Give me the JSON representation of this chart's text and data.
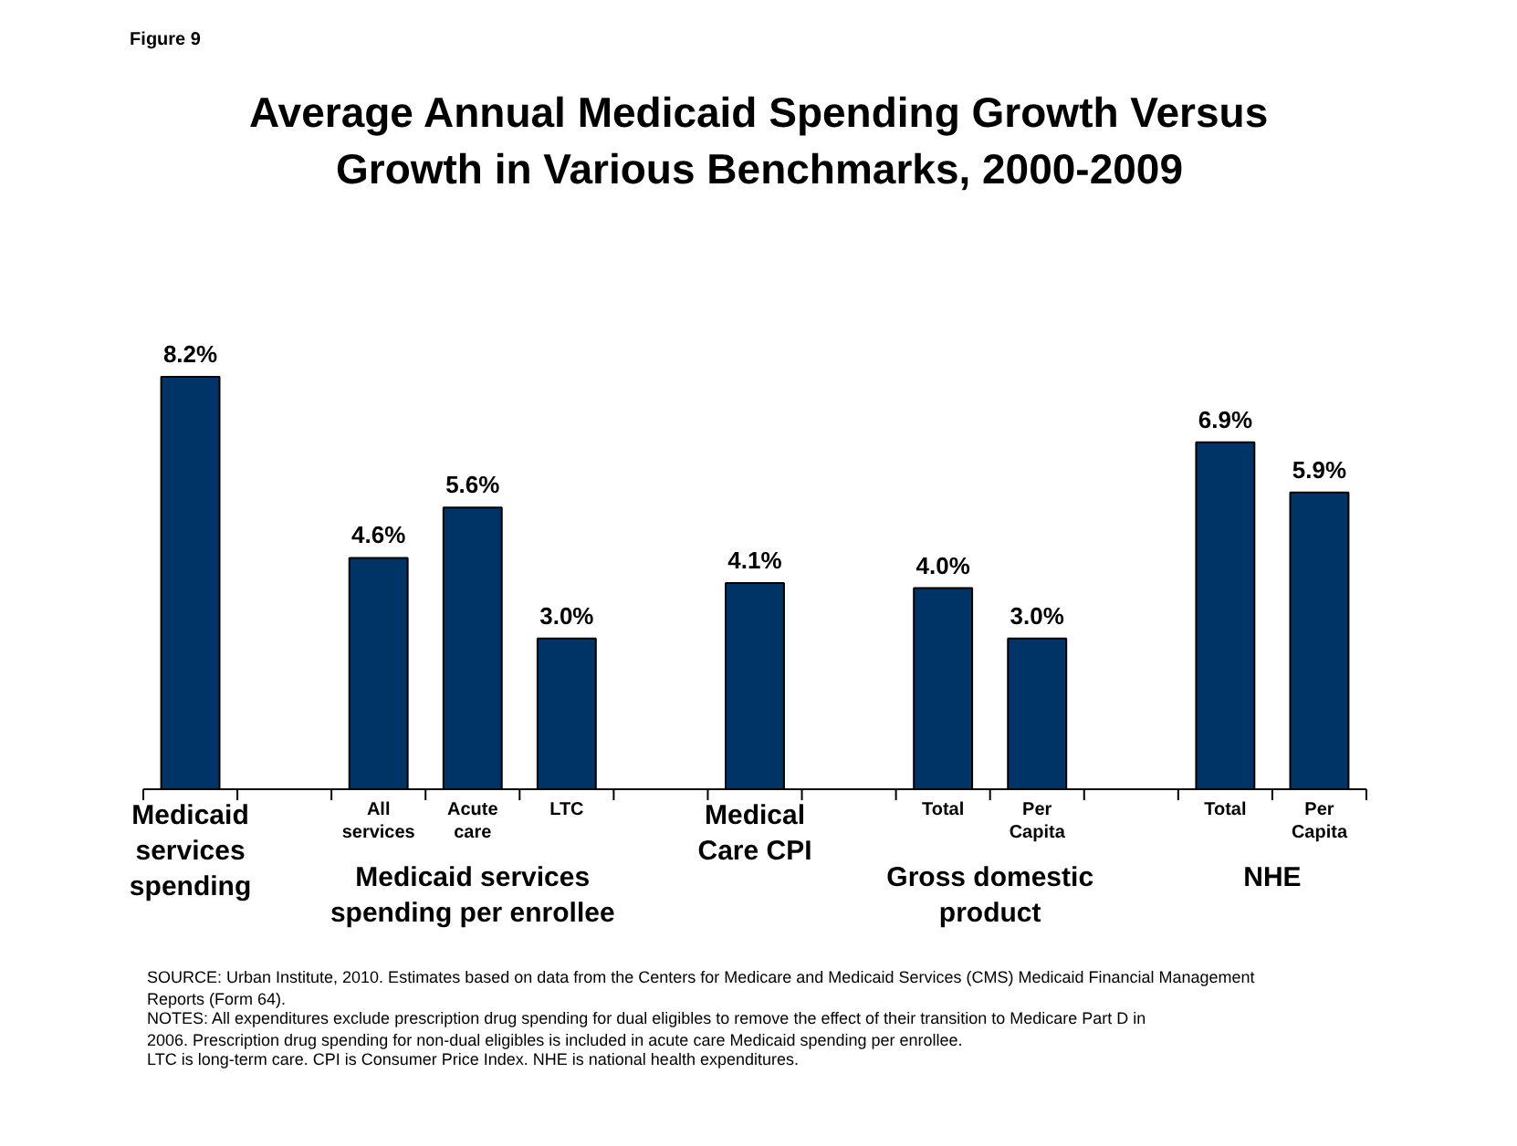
{
  "chart_data": {
    "type": "bar",
    "subtitle": "Figure 9",
    "title": "Average Annual Medicaid Spending Growth Versus Growth in Various Benchmarks, 2000-2009",
    "categories": [
      "Medicaid services spending",
      null,
      "All services",
      "Acute care",
      "LTC",
      null,
      "Medical Care CPI",
      null,
      "Total",
      "Per Capita",
      null,
      "Total",
      "Per Capita"
    ],
    "values": [
      8.2,
      null,
      4.6,
      5.6,
      3.0,
      null,
      4.1,
      null,
      4.0,
      3.0,
      null,
      6.9,
      5.9
    ],
    "value_labels": [
      "8.2%",
      null,
      "4.6%",
      "5.6%",
      "3.0%",
      null,
      "4.1%",
      null,
      "4.0%",
      "3.0%",
      null,
      "6.9%",
      "5.9%"
    ],
    "color": "#003366",
    "annotations": [
      "Medicaid services spending per enrollee",
      "Gross domestic product",
      "NHE",
      "SOURCE: Urban Institute, 2010. Estimates based on data from the Centers for Medicare and Medicaid Services (CMS) Medicaid Financial Management Reports (Form 64).",
      "NOTES: All expenditures exclude prescription drug spending for dual eligibles to remove the effect of their transition to Medicare Part D in 2006. Prescription drug spending for non-dual eligibles is included in acute care Medicaid spending per enrollee.",
      "LTC is long-term care. CPI is Consumer Price Index. NHE is national health expenditures."
    ]
  }
}
